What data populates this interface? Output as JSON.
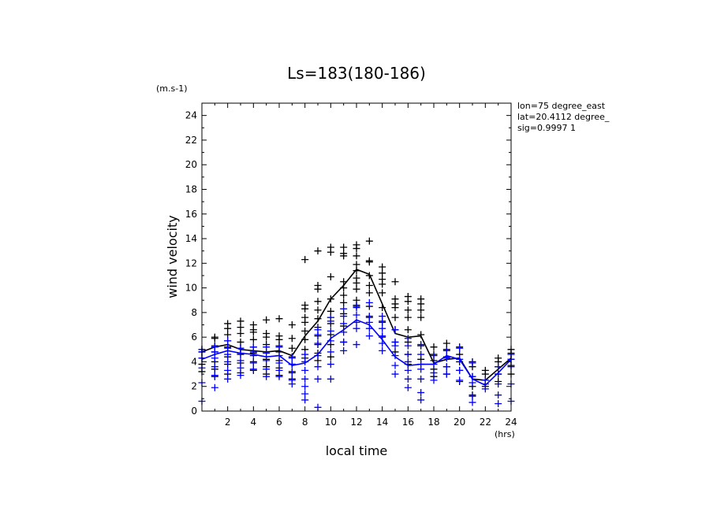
{
  "chart_data": {
    "type": "scatter",
    "title": "Ls=183(180-186)",
    "xlabel": "local time",
    "ylabel": "wind velocity",
    "xunit": "(hrs)",
    "yunit": "(m.s-1)",
    "xlim": [
      0,
      24
    ],
    "ylim": [
      0,
      25
    ],
    "xticks": [
      2,
      4,
      6,
      8,
      10,
      12,
      14,
      16,
      18,
      20,
      22,
      24
    ],
    "yticks": [
      0,
      2,
      4,
      6,
      8,
      10,
      12,
      14,
      16,
      18,
      20,
      22,
      24
    ],
    "annotations": [
      "lon=75 degree_east",
      "lat=20.4112 degree_",
      "sig=0.9997 1"
    ],
    "series": [
      {
        "color": "#000000",
        "mean": {
          "x": [
            0,
            1,
            2,
            3,
            4,
            5,
            6,
            7,
            8,
            9,
            10,
            11,
            12,
            13,
            14,
            15,
            16,
            17,
            18,
            19,
            20,
            21,
            22,
            23,
            24
          ],
          "y": [
            4.8,
            5.2,
            5.4,
            5.0,
            4.9,
            4.8,
            4.9,
            4.5,
            6.1,
            7.3,
            9.1,
            10.2,
            11.5,
            11.1,
            8.7,
            6.3,
            6.0,
            6.1,
            3.9,
            4.2,
            4.3,
            2.6,
            2.5,
            3.4,
            4.3
          ]
        },
        "samples": [
          {
            "x": 0,
            "y": [
              3.2,
              3.8,
              4.3,
              4.8,
              5.0
            ]
          },
          {
            "x": 1,
            "y": [
              2.8,
              3.4,
              4.0,
              4.8,
              5.3,
              5.9,
              6.0
            ]
          },
          {
            "x": 2,
            "y": [
              3.0,
              3.8,
              4.4,
              5.2,
              5.7,
              6.2,
              6.7,
              7.1
            ]
          },
          {
            "x": 3,
            "y": [
              3.1,
              3.9,
              4.6,
              5.1,
              5.6,
              6.3,
              6.8,
              7.3
            ]
          },
          {
            "x": 4,
            "y": [
              3.3,
              4.0,
              4.7,
              5.2,
              5.8,
              6.4,
              6.6,
              7.0
            ]
          },
          {
            "x": 5,
            "y": [
              3.0,
              3.6,
              4.2,
              4.8,
              5.4,
              6.0,
              6.3,
              7.4
            ]
          },
          {
            "x": 6,
            "y": [
              2.9,
              3.5,
              4.1,
              4.8,
              5.3,
              5.8,
              6.1,
              7.5
            ]
          },
          {
            "x": 7,
            "y": [
              2.6,
              3.2,
              3.8,
              4.4,
              5.1,
              5.9,
              7.0
            ]
          },
          {
            "x": 8,
            "y": [
              4.3,
              5.0,
              5.8,
              6.5,
              7.2,
              7.6,
              8.3,
              8.6,
              12.3
            ]
          },
          {
            "x": 9,
            "y": [
              4.1,
              4.7,
              5.4,
              6.1,
              6.8,
              7.5,
              8.2,
              8.9,
              9.9,
              10.2,
              13.0
            ]
          },
          {
            "x": 10,
            "y": [
              4.4,
              5.4,
              6.2,
              7.1,
              7.6,
              8.1,
              9.1,
              10.9,
              12.9,
              13.3
            ]
          },
          {
            "x": 11,
            "y": [
              5.6,
              6.9,
              7.9,
              8.8,
              9.4,
              10.0,
              10.5,
              12.6,
              12.8,
              13.3
            ]
          },
          {
            "x": 12,
            "y": [
              8.5,
              9.0,
              9.9,
              10.4,
              10.8,
              11.4,
              11.9,
              12.6,
              13.2,
              13.5
            ]
          },
          {
            "x": 13,
            "y": [
              7.6,
              8.5,
              9.6,
              10.2,
              11.0,
              12.1,
              12.2,
              13.8
            ]
          },
          {
            "x": 14,
            "y": [
              6.0,
              7.2,
              8.4,
              9.6,
              10.3,
              10.7,
              11.2,
              11.7
            ]
          },
          {
            "x": 15,
            "y": [
              4.8,
              5.6,
              6.6,
              7.6,
              8.4,
              8.7,
              9.1,
              10.5
            ]
          },
          {
            "x": 16,
            "y": [
              3.8,
              4.6,
              5.6,
              6.6,
              7.6,
              8.2,
              8.9,
              9.3
            ]
          },
          {
            "x": 17,
            "y": [
              4.2,
              5.3,
              6.2,
              7.6,
              8.2,
              8.7,
              9.1
            ]
          },
          {
            "x": 18,
            "y": [
              2.8,
              3.4,
              4.1,
              4.6,
              5.2
            ]
          },
          {
            "x": 19,
            "y": [
              3.0,
              3.6,
              4.4,
              5.0,
              5.5
            ]
          },
          {
            "x": 20,
            "y": [
              2.4,
              3.3,
              4.0,
              4.6,
              5.2
            ]
          },
          {
            "x": 21,
            "y": [
              1.3,
              2.0,
              2.8,
              3.6,
              4.0
            ]
          },
          {
            "x": 22,
            "y": [
              2.0,
              2.5,
              3.0,
              3.3
            ]
          },
          {
            "x": 23,
            "y": [
              2.4,
              3.0,
              3.6,
              4.0,
              4.3
            ]
          },
          {
            "x": 24,
            "y": [
              3.0,
              3.7,
              4.2,
              4.7,
              5.0
            ]
          }
        ]
      },
      {
        "color": "#0000ff",
        "mean": {
          "x": [
            0,
            1,
            2,
            3,
            4,
            5,
            6,
            7,
            8,
            9,
            10,
            11,
            12,
            13,
            14,
            15,
            16,
            17,
            18,
            19,
            20,
            21,
            22,
            23,
            24
          ],
          "y": [
            4.2,
            4.6,
            4.9,
            4.7,
            4.6,
            4.4,
            4.5,
            3.7,
            3.9,
            4.6,
            5.9,
            6.6,
            7.4,
            7.0,
            5.8,
            4.4,
            3.7,
            3.8,
            3.8,
            4.5,
            4.2,
            2.6,
            2.1,
            3.1,
            4.2
          ]
        },
        "samples": [
          {
            "x": 0,
            "y": [
              0.8,
              2.3,
              3.5,
              4.3,
              4.8,
              5.0
            ]
          },
          {
            "x": 1,
            "y": [
              1.9,
              2.9,
              3.6,
              4.3,
              4.8,
              5.2
            ]
          },
          {
            "x": 2,
            "y": [
              2.6,
              3.3,
              4.0,
              4.6,
              5.1,
              5.7
            ]
          },
          {
            "x": 3,
            "y": [
              2.9,
              3.5,
              4.1,
              4.7,
              5.1
            ]
          },
          {
            "x": 4,
            "y": [
              3.4,
              3.9,
              4.5,
              4.8,
              5.2
            ]
          },
          {
            "x": 5,
            "y": [
              2.8,
              3.4,
              4.1,
              4.7,
              5.2
            ]
          },
          {
            "x": 6,
            "y": [
              2.8,
              3.3,
              3.9,
              4.5,
              5.2
            ]
          },
          {
            "x": 7,
            "y": [
              2.2,
              2.5,
              3.1,
              3.8,
              4.3
            ]
          },
          {
            "x": 8,
            "y": [
              0.9,
              1.4,
              2.0,
              2.6,
              3.3,
              4.0,
              4.6
            ]
          },
          {
            "x": 9,
            "y": [
              0.3,
              2.6,
              3.6,
              4.5,
              5.5,
              6.2,
              6.6
            ]
          },
          {
            "x": 10,
            "y": [
              2.6,
              3.8,
              4.8,
              5.7,
              6.5,
              7.3,
              7.6
            ]
          },
          {
            "x": 11,
            "y": [
              4.9,
              5.6,
              6.4,
              7.1,
              7.7,
              8.3
            ]
          },
          {
            "x": 12,
            "y": [
              5.4,
              6.7,
              7.2,
              7.8,
              8.4,
              8.6
            ]
          },
          {
            "x": 13,
            "y": [
              6.1,
              6.7,
              7.2,
              7.7,
              8.8
            ]
          },
          {
            "x": 14,
            "y": [
              4.9,
              5.5,
              6.1,
              6.7,
              7.3,
              7.7
            ]
          },
          {
            "x": 15,
            "y": [
              3.0,
              3.7,
              4.5,
              5.3,
              5.6,
              6.6
            ]
          },
          {
            "x": 16,
            "y": [
              1.9,
              2.6,
              3.3,
              4.0,
              4.6,
              5.3,
              5.9
            ]
          },
          {
            "x": 17,
            "y": [
              0.9,
              1.5,
              2.6,
              3.4,
              3.8,
              4.6,
              5.4
            ]
          },
          {
            "x": 18,
            "y": [
              2.5,
              3.1,
              3.8,
              4.5
            ]
          },
          {
            "x": 19,
            "y": [
              3.0,
              3.6,
              4.3,
              4.9
            ]
          },
          {
            "x": 20,
            "y": [
              2.5,
              3.3,
              4.2,
              5.1
            ]
          },
          {
            "x": 21,
            "y": [
              0.7,
              1.2,
              2.3,
              2.8,
              3.9
            ]
          },
          {
            "x": 22,
            "y": [
              1.8,
              2.2,
              2.5
            ]
          },
          {
            "x": 23,
            "y": [
              0.6,
              1.3,
              2.2,
              3.0,
              3.6
            ]
          },
          {
            "x": 24,
            "y": [
              0.8,
              2.2,
              3.6,
              4.2,
              4.6
            ]
          }
        ]
      }
    ]
  }
}
